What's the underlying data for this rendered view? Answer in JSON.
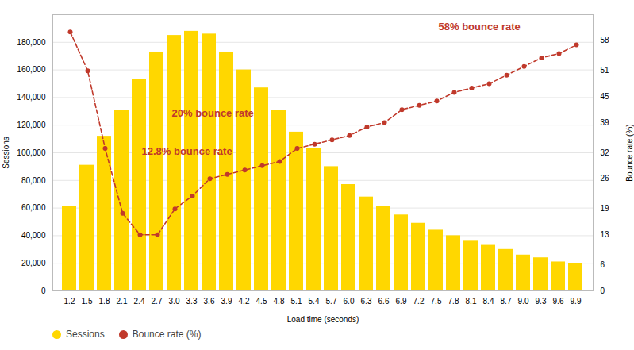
{
  "chart_data": {
    "type": "bar",
    "categories": [
      "1.2",
      "1.5",
      "1.8",
      "2.1",
      "2.4",
      "2.7",
      "3.0",
      "3.3",
      "3.6",
      "3.9",
      "4.2",
      "4.5",
      "4.8",
      "5.1",
      "5.4",
      "5.7",
      "6.0",
      "6.3",
      "6.6",
      "6.9",
      "7.2",
      "7.5",
      "7.8",
      "8.1",
      "8.4",
      "8.7",
      "9.0",
      "9.3",
      "9.6",
      "9.9"
    ],
    "xlabel": "Load time (seconds)",
    "ylabel": "Sessions",
    "y2label": "Bounce rate (%)",
    "series": [
      {
        "name": "Sessions",
        "type": "bar",
        "color": "#FFD700",
        "values": [
          61000,
          91000,
          112000,
          131000,
          153000,
          173000,
          185000,
          188000,
          186000,
          173000,
          160000,
          147000,
          131000,
          115000,
          103000,
          90000,
          77000,
          68000,
          61000,
          55000,
          49000,
          44000,
          40000,
          36000,
          33000,
          30000,
          26000,
          24000,
          21000,
          20000
        ]
      },
      {
        "name": "Bounce rate (%)",
        "type": "line",
        "axis": "y2",
        "color": "#C0392B",
        "marker": "o",
        "line_style": "dashed",
        "values": [
          60,
          51,
          33,
          18,
          13,
          13,
          19,
          22,
          26,
          27,
          28,
          29,
          30,
          33,
          34,
          35,
          36,
          38,
          39,
          42,
          43,
          44,
          46,
          47,
          48,
          50,
          52,
          54,
          55,
          57
        ]
      }
    ],
    "ylim": [
      0,
      200000
    ],
    "yticks": [
      0,
      {
        "value": 20000,
        "label": "20,000"
      },
      {
        "value": 40000,
        "label": "40,000"
      },
      {
        "value": 60000,
        "label": "60,000"
      },
      {
        "value": 80000,
        "label": "80,000"
      },
      {
        "value": 100000,
        "label": "100,000"
      },
      {
        "value": 120000,
        "label": "120,000"
      },
      {
        "value": 140000,
        "label": "140,000"
      },
      {
        "value": 160000,
        "label": "160,000"
      },
      {
        "value": 180000,
        "label": "180,000"
      }
    ],
    "y2lim": [
      0,
      64
    ],
    "y2ticks": [
      0,
      6,
      13,
      19,
      26,
      32,
      39,
      45,
      51,
      58
    ],
    "annotations": [
      "58% bounce rate",
      "20% bounce rate",
      "12.8% bounce rate"
    ],
    "grid": true,
    "legend": "lower left"
  }
}
